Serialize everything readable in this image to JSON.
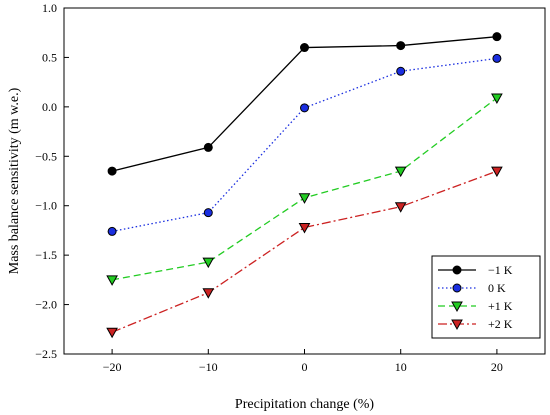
{
  "chart_data": {
    "type": "line",
    "x": [
      -20,
      -10,
      0,
      10,
      20
    ],
    "xlabel": "Precipitation change (%)",
    "ylabel": "Mass balance sensitivity (m w.e.)",
    "xlim": [
      -25,
      25
    ],
    "ylim": [
      -2.5,
      1.0
    ],
    "xticks": [
      -20,
      -10,
      0,
      10,
      20
    ],
    "xtick_labels": [
      "−20",
      "−10",
      "0",
      "10",
      "20"
    ],
    "yticks": [
      -2.5,
      -2.0,
      -1.5,
      -1.0,
      -0.5,
      0.0,
      0.5,
      1.0
    ],
    "ytick_labels": [
      "−2.5",
      "−2.0",
      "−1.5",
      "−1.0",
      "−0.5",
      "0.0",
      "0.5",
      "1.0"
    ],
    "grid": false,
    "legend_position": "bottom-right",
    "series": [
      {
        "name": "−1 K",
        "values": [
          -0.65,
          -0.41,
          0.6,
          0.62,
          0.71
        ],
        "color": "#000000",
        "marker": "circle",
        "dash": "solid"
      },
      {
        "name": "0 K",
        "values": [
          -1.26,
          -1.07,
          -0.01,
          0.36,
          0.49
        ],
        "color": "#1a2ee0",
        "marker": "circle",
        "dash": "dotted"
      },
      {
        "name": "+1 K",
        "values": [
          -1.75,
          -1.57,
          -0.92,
          -0.65,
          0.09
        ],
        "color": "#22cc22",
        "marker": "triangle-down",
        "dash": "dashed"
      },
      {
        "name": "+2 K",
        "values": [
          -2.28,
          -1.88,
          -1.22,
          -1.01,
          -0.65
        ],
        "color": "#cc2222",
        "marker": "triangle-down",
        "dash": "dashdot"
      }
    ]
  }
}
